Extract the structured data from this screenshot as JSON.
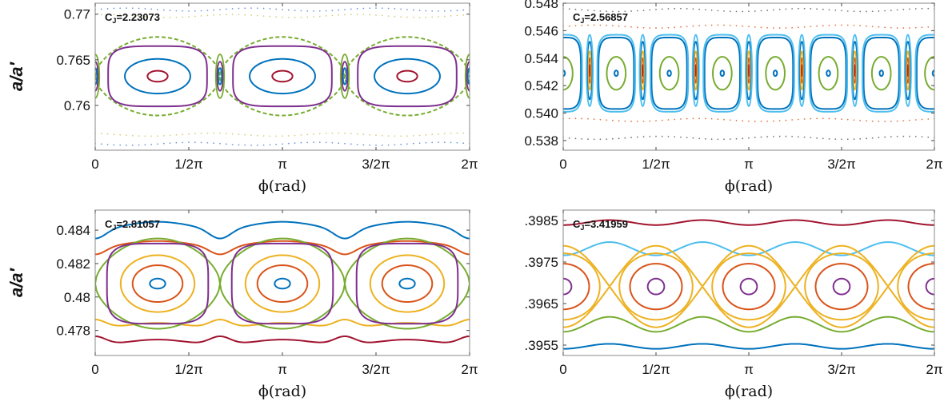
{
  "chart_data": [
    {
      "type": "line",
      "panel": "top-left",
      "annotation": "C_J=2.23073",
      "annotation_main": "C",
      "annotation_sub": "J",
      "annotation_value": "=2.23073",
      "xlabel": "ϕ(rad)",
      "ylabel": "a/a′",
      "xlim": [
        0,
        6.2832
      ],
      "ylim": [
        0.7551,
        0.7712
      ],
      "x_ticks": [
        0,
        1.5708,
        3.1416,
        4.7124,
        6.2832
      ],
      "x_tick_labels": [
        "0",
        "1/2π",
        "π",
        "3/2π",
        "2π"
      ],
      "y_ticks": [
        0.76,
        0.765,
        0.77
      ],
      "y_tick_labels": [
        "0.76",
        "0.765",
        "0.77"
      ],
      "islands": {
        "period": 2.0944,
        "centers": [
          1.0472,
          3.1416,
          5.236
        ],
        "y0": 0.7632,
        "curves": [
          {
            "color": "#a2142f",
            "a": 0.17,
            "b": 0.0006
          },
          {
            "color": "#0072bd",
            "a": 0.55,
            "b": 0.0019
          },
          {
            "color": "#7e2f8e",
            "a": 0.83,
            "b": 0.0033,
            "flat": true
          }
        ]
      },
      "separatrix": {
        "color": "#77ac30",
        "amp": 0.0043,
        "y0": 0.7632,
        "dashed": true
      },
      "small_islands": {
        "centers": [
          0,
          2.0944,
          4.1888,
          6.2832
        ],
        "y0": 0.7632,
        "colors": [
          "#0072bd",
          "#7e2f8e",
          "#77ac30"
        ],
        "a": [
          0.03,
          0.05,
          0.07
        ],
        "b": [
          0.0009,
          0.0016,
          0.0024
        ]
      },
      "chaotic_rows": [
        {
          "y": 0.7705,
          "color": "#4c7fd0"
        },
        {
          "y": 0.7698,
          "color": "#c9c25e"
        },
        {
          "y": 0.7568,
          "color": "#c9c25e"
        },
        {
          "y": 0.7558,
          "color": "#4c7fd0"
        }
      ]
    },
    {
      "type": "line",
      "panel": "top-right",
      "annotation": "C_J=2.56857",
      "annotation_main": "C",
      "annotation_sub": "J",
      "annotation_value": "=2.56857",
      "xlabel": "ϕ(rad)",
      "ylabel": "",
      "xlim": [
        0,
        6.2832
      ],
      "ylim": [
        0.5373,
        0.548
      ],
      "x_ticks": [
        0,
        1.5708,
        3.1416,
        4.7124,
        6.2832
      ],
      "x_tick_labels": [
        "0",
        "1/2π",
        "π",
        "3/2π",
        "2π"
      ],
      "y_ticks": [
        0.538,
        0.54,
        0.542,
        0.544,
        0.546,
        0.548
      ],
      "y_tick_labels": [
        "0.538",
        "0.540",
        "0.542",
        "0.544",
        "0.546",
        "0.548"
      ],
      "islands": {
        "period": 0.8976,
        "centers": [
          0,
          0.8976,
          1.7952,
          2.6928,
          3.5904,
          4.488,
          5.3856,
          6.2832
        ],
        "y0": 0.5429,
        "curves": [
          {
            "color": "#0072bd",
            "a": 0.03,
            "b": 0.0002
          },
          {
            "color": "#77ac30",
            "a": 0.16,
            "b": 0.0012
          },
          {
            "color": "#0072bd",
            "a": 0.3,
            "b": 0.0026,
            "flat": true
          },
          {
            "color": "#4dbeee",
            "a": 0.32,
            "b": 0.0028,
            "flat": true
          }
        ]
      },
      "small_islands": {
        "centers": [
          0.4488,
          1.3464,
          2.244,
          3.1416,
          4.0392,
          4.9368,
          5.8344
        ],
        "y0": 0.5431,
        "colors": [
          "#a2142f",
          "#d95319",
          "#edb120",
          "#0072bd",
          "#4dbeee"
        ],
        "a": [
          0.01,
          0.02,
          0.03,
          0.045,
          0.055
        ],
        "b": [
          0.0004,
          0.0009,
          0.0014,
          0.0021,
          0.0026
        ]
      },
      "chaotic_rows": [
        {
          "y": 0.5463,
          "color": "#d95319"
        },
        {
          "y": 0.5395,
          "color": "#d95319"
        },
        {
          "y": 0.5475,
          "color": "#555555"
        },
        {
          "y": 0.5382,
          "color": "#555555"
        }
      ]
    },
    {
      "type": "line",
      "panel": "bottom-left",
      "annotation": "C_J=2.81057",
      "annotation_main": "C",
      "annotation_sub": "J",
      "annotation_value": "=2.81057",
      "xlabel": "ϕ(rad)",
      "ylabel": "a/a′",
      "xlim": [
        0,
        6.2832
      ],
      "ylim": [
        0.4765,
        0.4852
      ],
      "x_ticks": [
        0,
        1.5708,
        3.1416,
        4.7124,
        6.2832
      ],
      "x_tick_labels": [
        "0",
        "1/2π",
        "π",
        "3/2π",
        "2π"
      ],
      "y_ticks": [
        0.478,
        0.48,
        0.482,
        0.484
      ],
      "y_tick_labels": [
        "0.478",
        "0.48",
        "0.482",
        "0.484"
      ],
      "islands": {
        "period": 2.0944,
        "centers": [
          1.0472,
          3.1416,
          5.236
        ],
        "y0": 0.4808,
        "curves": [
          {
            "color": "#0072bd",
            "a": 0.13,
            "b": 0.0003
          },
          {
            "color": "#d95319",
            "a": 0.42,
            "b": 0.0011
          },
          {
            "color": "#edb120",
            "a": 0.62,
            "b": 0.0017
          },
          {
            "color": "#7e2f8e",
            "a": 0.85,
            "b": 0.0024,
            "flat": true
          }
        ]
      },
      "separatrix": {
        "color": "#77ac30",
        "amp": 0.0027,
        "y0": 0.4808
      },
      "libration_lines": [
        {
          "color": "#0072bd",
          "y0": 0.4843,
          "amp": 0.0004,
          "dip": 0.0006
        },
        {
          "color": "#d95319",
          "y0": 0.4832,
          "amp": 0.0003,
          "dip": 0.0005
        },
        {
          "color": "#edb120",
          "y0": 0.4783,
          "amp": 0.0003,
          "dip": -0.0005
        },
        {
          "color": "#a2142f",
          "y0": 0.4773,
          "amp": 0.0003,
          "dip": -0.0005
        }
      ]
    },
    {
      "type": "line",
      "panel": "bottom-right",
      "annotation": "C_J=3.41959",
      "annotation_main": "C",
      "annotation_sub": "J",
      "annotation_value": "=3.41959",
      "xlabel": "ϕ(rad)",
      "ylabel": "",
      "xlim": [
        0,
        6.2832
      ],
      "ylim": [
        0.39525,
        0.39875
      ],
      "x_ticks": [
        0,
        1.5708,
        3.1416,
        4.7124,
        6.2832
      ],
      "x_tick_labels": [
        "0",
        "1/2π",
        "π",
        "3/2π",
        "2π"
      ],
      "y_ticks": [
        0.3955,
        0.3965,
        0.3975,
        0.3985
      ],
      "y_tick_labels": [
        ".3955",
        ".3965",
        ".3975",
        ".3985"
      ],
      "islands": {
        "period": 1.5708,
        "centers": [
          0,
          1.5708,
          3.1416,
          4.7124,
          6.2832
        ],
        "y0": 0.39691,
        "curves": [
          {
            "color": "#7e2f8e",
            "a": 0.14,
            "b": 0.00019
          },
          {
            "color": "#d95319",
            "a": 0.44,
            "b": 0.00055
          },
          {
            "color": "#edb120",
            "a": 0.62,
            "b": 0.0008
          }
        ]
      },
      "separatrix": {
        "color": "#edb120",
        "amp": 0.00098,
        "y0": 0.39691,
        "lens": true
      },
      "libration_lines": [
        {
          "color": "#a2142f",
          "y0": 0.39845,
          "amp": 6e-05,
          "period": 1.5708
        },
        {
          "color": "#4dbeee",
          "y0": 0.39782,
          "amp": 0.00016,
          "period": 1.5708
        },
        {
          "color": "#77ac30",
          "y0": 0.396,
          "amp": 0.00018,
          "period": 1.5708
        },
        {
          "color": "#0072bd",
          "y0": 0.39547,
          "amp": 6e-05,
          "period": 1.5708
        }
      ]
    }
  ]
}
